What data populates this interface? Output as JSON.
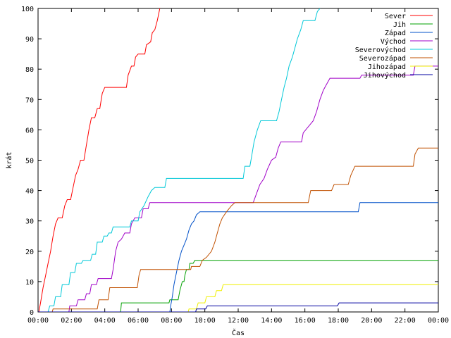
{
  "chart_data": {
    "type": "line",
    "xlabel": "Čas",
    "ylabel": "krát",
    "xlim": [
      0,
      24
    ],
    "ylim": [
      0,
      100
    ],
    "x_tick_values": [
      0,
      2,
      4,
      6,
      8,
      10,
      12,
      14,
      16,
      18,
      20,
      22,
      24
    ],
    "x_tick_labels": [
      "00:00",
      "02:00",
      "04:00",
      "06:00",
      "08:00",
      "10:00",
      "12:00",
      "14:00",
      "16:00",
      "18:00",
      "20:00",
      "22:00",
      "00:00"
    ],
    "y_tick_values": [
      0,
      10,
      20,
      30,
      40,
      50,
      60,
      70,
      80,
      90,
      100
    ],
    "y_tick_labels": [
      "0",
      "10",
      "20",
      "30",
      "40",
      "50",
      "60",
      "70",
      "80",
      "90",
      "100"
    ],
    "grid": false,
    "legend_position": "top-right",
    "series": [
      {
        "name": "Sever",
        "color": "#ff0000",
        "points": [
          [
            0.05,
            0
          ],
          [
            0.15,
            3
          ],
          [
            0.3,
            8
          ],
          [
            0.45,
            12
          ],
          [
            0.6,
            16
          ],
          [
            0.75,
            20
          ],
          [
            0.9,
            25
          ],
          [
            1.05,
            29
          ],
          [
            1.2,
            31
          ],
          [
            1.45,
            31
          ],
          [
            1.6,
            35
          ],
          [
            1.75,
            37
          ],
          [
            1.95,
            37
          ],
          [
            2.1,
            41
          ],
          [
            2.25,
            45
          ],
          [
            2.4,
            47
          ],
          [
            2.55,
            50
          ],
          [
            2.75,
            50
          ],
          [
            2.9,
            55
          ],
          [
            3.05,
            60
          ],
          [
            3.2,
            64
          ],
          [
            3.4,
            64
          ],
          [
            3.55,
            67
          ],
          [
            3.7,
            67
          ],
          [
            3.85,
            72
          ],
          [
            4.0,
            74
          ],
          [
            5.3,
            74
          ],
          [
            5.4,
            78
          ],
          [
            5.6,
            81
          ],
          [
            5.75,
            81
          ],
          [
            5.85,
            84
          ],
          [
            6.0,
            85
          ],
          [
            6.4,
            85
          ],
          [
            6.5,
            88
          ],
          [
            6.75,
            89
          ],
          [
            6.85,
            92
          ],
          [
            7.0,
            93
          ],
          [
            7.15,
            96
          ],
          [
            7.3,
            100
          ]
        ]
      },
      {
        "name": "Jih",
        "color": "#00a000",
        "points": [
          [
            0,
            0
          ],
          [
            4.95,
            0
          ],
          [
            5.0,
            3
          ],
          [
            7.85,
            3
          ],
          [
            7.9,
            4
          ],
          [
            8.4,
            4
          ],
          [
            8.5,
            7
          ],
          [
            8.65,
            10
          ],
          [
            8.75,
            10
          ],
          [
            8.8,
            12
          ],
          [
            8.9,
            14
          ],
          [
            9.05,
            14
          ],
          [
            9.1,
            16
          ],
          [
            9.3,
            16
          ],
          [
            9.4,
            17
          ],
          [
            24,
            17
          ]
        ]
      },
      {
        "name": "Západ",
        "color": "#0050c8",
        "points": [
          [
            0,
            0
          ],
          [
            7.9,
            0
          ],
          [
            7.95,
            2
          ],
          [
            8.05,
            5
          ],
          [
            8.15,
            9
          ],
          [
            8.3,
            13
          ],
          [
            8.45,
            17
          ],
          [
            8.6,
            20
          ],
          [
            8.75,
            22
          ],
          [
            8.9,
            24
          ],
          [
            9.05,
            27
          ],
          [
            9.2,
            29
          ],
          [
            9.35,
            30
          ],
          [
            9.5,
            32
          ],
          [
            9.7,
            33
          ],
          [
            19.2,
            33
          ],
          [
            19.3,
            36
          ],
          [
            24,
            36
          ]
        ]
      },
      {
        "name": "Východ",
        "color": "#a000c8",
        "points": [
          [
            0,
            0
          ],
          [
            1.85,
            0
          ],
          [
            1.9,
            2
          ],
          [
            2.3,
            2
          ],
          [
            2.4,
            4
          ],
          [
            2.8,
            4
          ],
          [
            2.9,
            6
          ],
          [
            3.1,
            6
          ],
          [
            3.2,
            9
          ],
          [
            3.5,
            9
          ],
          [
            3.6,
            11
          ],
          [
            4.4,
            11
          ],
          [
            4.5,
            14
          ],
          [
            4.65,
            20
          ],
          [
            4.8,
            23
          ],
          [
            5.0,
            24
          ],
          [
            5.2,
            26
          ],
          [
            5.5,
            26
          ],
          [
            5.6,
            29
          ],
          [
            5.8,
            31
          ],
          [
            6.2,
            31
          ],
          [
            6.3,
            34
          ],
          [
            6.6,
            34
          ],
          [
            6.7,
            36
          ],
          [
            12.9,
            36
          ],
          [
            13.1,
            39
          ],
          [
            13.3,
            42
          ],
          [
            13.55,
            44
          ],
          [
            13.75,
            47
          ],
          [
            14.0,
            50
          ],
          [
            14.25,
            51
          ],
          [
            14.4,
            54
          ],
          [
            14.55,
            56
          ],
          [
            15.8,
            56
          ],
          [
            15.9,
            59
          ],
          [
            16.2,
            61
          ],
          [
            16.5,
            63
          ],
          [
            16.7,
            66
          ],
          [
            16.9,
            70
          ],
          [
            17.1,
            73
          ],
          [
            17.3,
            75
          ],
          [
            17.5,
            77
          ],
          [
            19.3,
            77
          ],
          [
            19.4,
            78
          ],
          [
            22.5,
            78
          ],
          [
            22.6,
            81
          ],
          [
            24,
            81
          ]
        ]
      },
      {
        "name": "Severovýchod",
        "color": "#00c8d8",
        "points": [
          [
            0,
            0
          ],
          [
            0.6,
            0
          ],
          [
            0.7,
            2
          ],
          [
            0.95,
            2
          ],
          [
            1.05,
            5
          ],
          [
            1.35,
            5
          ],
          [
            1.45,
            9
          ],
          [
            1.85,
            9
          ],
          [
            1.95,
            13
          ],
          [
            2.2,
            13
          ],
          [
            2.3,
            16
          ],
          [
            2.6,
            16
          ],
          [
            2.7,
            17
          ],
          [
            3.15,
            17
          ],
          [
            3.25,
            19
          ],
          [
            3.45,
            19
          ],
          [
            3.55,
            23
          ],
          [
            3.85,
            23
          ],
          [
            3.95,
            25
          ],
          [
            4.15,
            25
          ],
          [
            4.25,
            26
          ],
          [
            4.4,
            26
          ],
          [
            4.5,
            28
          ],
          [
            5.5,
            28
          ],
          [
            5.6,
            30
          ],
          [
            6.0,
            30
          ],
          [
            6.1,
            33
          ],
          [
            6.35,
            35
          ],
          [
            6.6,
            38
          ],
          [
            6.8,
            40
          ],
          [
            7.0,
            41
          ],
          [
            7.6,
            41
          ],
          [
            7.7,
            44
          ],
          [
            12.3,
            44
          ],
          [
            12.4,
            48
          ],
          [
            12.7,
            48
          ],
          [
            12.8,
            51
          ],
          [
            12.95,
            56
          ],
          [
            13.15,
            60
          ],
          [
            13.35,
            63
          ],
          [
            14.3,
            63
          ],
          [
            14.45,
            66
          ],
          [
            14.6,
            70
          ],
          [
            14.75,
            74
          ],
          [
            14.9,
            77
          ],
          [
            15.05,
            81
          ],
          [
            15.25,
            84
          ],
          [
            15.4,
            87
          ],
          [
            15.55,
            90
          ],
          [
            15.75,
            93
          ],
          [
            15.9,
            96
          ],
          [
            16.6,
            96
          ],
          [
            16.75,
            99
          ],
          [
            16.9,
            100
          ]
        ]
      },
      {
        "name": "Severozápad",
        "color": "#c05000",
        "points": [
          [
            0,
            0
          ],
          [
            0.85,
            0
          ],
          [
            0.9,
            1
          ],
          [
            3.55,
            1
          ],
          [
            3.65,
            4
          ],
          [
            4.2,
            4
          ],
          [
            4.3,
            8
          ],
          [
            5.95,
            8
          ],
          [
            6.05,
            12
          ],
          [
            6.15,
            14
          ],
          [
            9.15,
            14
          ],
          [
            9.2,
            15
          ],
          [
            9.7,
            15
          ],
          [
            9.85,
            17
          ],
          [
            10.1,
            18
          ],
          [
            10.4,
            20
          ],
          [
            10.6,
            23
          ],
          [
            10.75,
            26
          ],
          [
            10.9,
            29
          ],
          [
            11.05,
            31
          ],
          [
            11.3,
            33
          ],
          [
            11.6,
            35
          ],
          [
            11.8,
            36
          ],
          [
            16.2,
            36
          ],
          [
            16.35,
            40
          ],
          [
            17.6,
            40
          ],
          [
            17.75,
            42
          ],
          [
            18.6,
            42
          ],
          [
            18.75,
            45
          ],
          [
            19.0,
            48
          ],
          [
            22.5,
            48
          ],
          [
            22.6,
            52
          ],
          [
            22.8,
            54
          ],
          [
            24,
            54
          ]
        ]
      },
      {
        "name": "Jihozápad",
        "color": "#f0f000",
        "points": [
          [
            0,
            0
          ],
          [
            9.0,
            0
          ],
          [
            9.05,
            1
          ],
          [
            9.5,
            1
          ],
          [
            9.6,
            3
          ],
          [
            10.0,
            3
          ],
          [
            10.1,
            5
          ],
          [
            10.6,
            5
          ],
          [
            10.7,
            7
          ],
          [
            11.0,
            7
          ],
          [
            11.1,
            9
          ],
          [
            24,
            9
          ]
        ]
      },
      {
        "name": "Jihovýchod",
        "color": "#0000a0",
        "points": [
          [
            0,
            0
          ],
          [
            9.45,
            0
          ],
          [
            9.5,
            1
          ],
          [
            10.05,
            1
          ],
          [
            10.15,
            2
          ],
          [
            17.95,
            2
          ],
          [
            18.05,
            3
          ],
          [
            24,
            3
          ]
        ]
      }
    ]
  }
}
